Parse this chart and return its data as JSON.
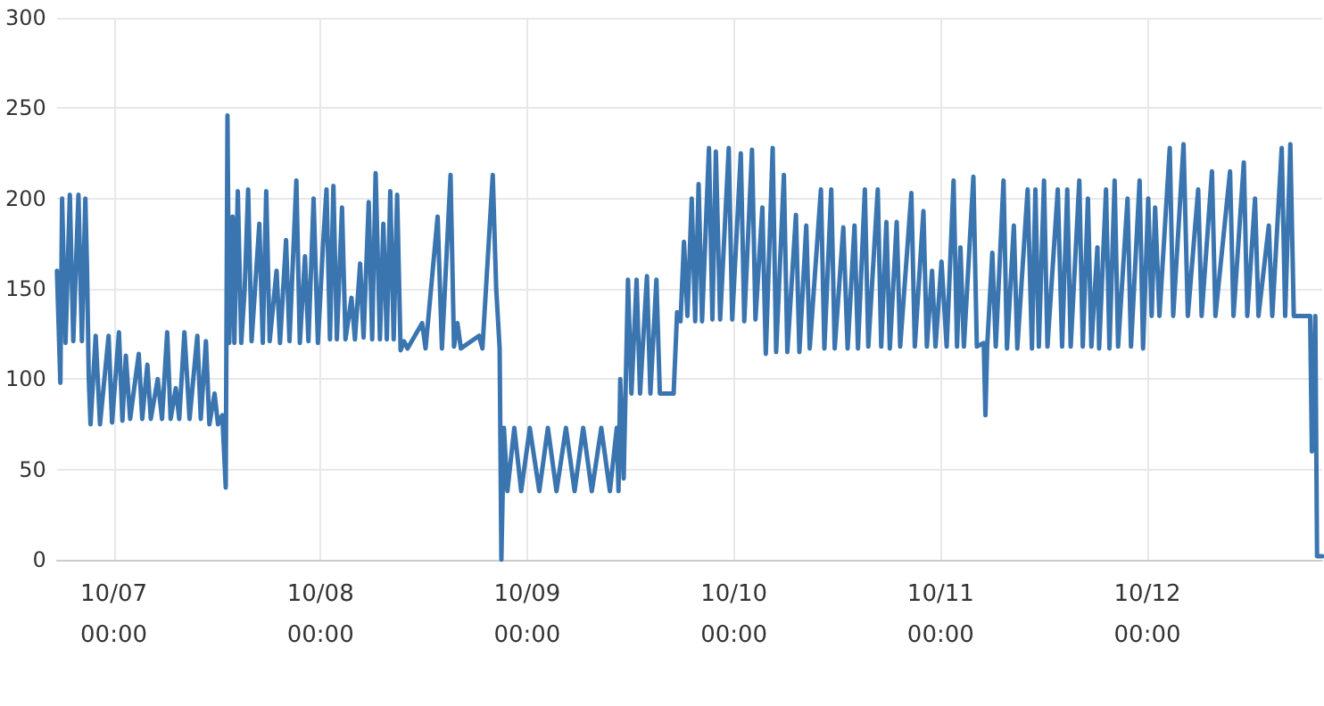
{
  "chart_data": {
    "type": "line",
    "xlim": [
      "--10-06T17:24",
      "--10-12T20:18"
    ],
    "ylim": [
      0,
      300
    ],
    "xticks": [
      {
        "value": "--10-07T00:00",
        "label": "10/07\n00:00"
      },
      {
        "value": "--10-08T00:00",
        "label": "10/08\n00:00"
      },
      {
        "value": "--10-09T00:00",
        "label": "10/09\n00:00"
      },
      {
        "value": "--10-10T00:00",
        "label": "10/10\n00:00"
      },
      {
        "value": "--10-11T00:00",
        "label": "10/11\n00:00"
      },
      {
        "value": "--10-12T00:00",
        "label": "10/12\n00:00"
      }
    ],
    "yticks": [
      0,
      50,
      100,
      150,
      200,
      250,
      300
    ],
    "grid": true,
    "marker": "none",
    "line_style": "solid",
    "series": [
      {
        "color": "#3a75b0",
        "x": [
          "--10-06T17:24",
          "--10-06T17:48",
          "--10-06T18:00",
          "--10-06T18:24",
          "--10-06T18:54",
          "--10-06T19:18",
          "--10-06T19:54",
          "--10-06T20:18",
          "--10-06T20:42",
          "--10-06T20:54",
          "--10-06T21:06",
          "--10-06T21:18",
          "--10-06T21:54",
          "--10-06T22:24",
          "--10-06T23:24",
          "--10-06T23:48",
          "--10-07T00:36",
          "--10-07T01:00",
          "--10-07T01:24",
          "--10-07T01:54",
          "--10-07T02:54",
          "--10-07T03:18",
          "--10-07T03:54",
          "--10-07T04:18",
          "--10-07T05:06",
          "--10-07T05:36",
          "--10-07T06:12",
          "--10-07T06:36",
          "--10-07T07:12",
          "--10-07T07:36",
          "--10-07T08:12",
          "--10-07T08:48",
          "--10-07T09:42",
          "--10-07T10:06",
          "--10-07T10:42",
          "--10-07T11:06",
          "--10-07T11:42",
          "--10-07T12:06",
          "--10-07T12:36",
          "--10-07T13:00",
          "--10-07T13:12",
          "--10-07T13:24",
          "--10-07T13:48",
          "--10-07T14:00",
          "--10-07T14:24",
          "--10-07T14:48",
          "--10-07T15:12",
          "--10-07T15:36",
          "--10-07T16:00",
          "--10-07T16:54",
          "--10-07T17:18",
          "--10-07T17:42",
          "--10-07T18:06",
          "--10-07T18:54",
          "--10-07T19:18",
          "--10-07T20:00",
          "--10-07T20:24",
          "--10-07T21:12",
          "--10-07T21:36",
          "--10-07T22:12",
          "--10-07T22:36",
          "--10-07T23:12",
          "--10-07T23:42",
          "--10-08T00:18",
          "--10-08T00:42",
          "--10-08T01:06",
          "--10-08T01:30",
          "--10-08T01:54",
          "--10-08T02:30",
          "--10-08T02:54",
          "--10-08T03:36",
          "--10-08T04:00",
          "--10-08T04:36",
          "--10-08T05:00",
          "--10-08T05:36",
          "--10-08T06:00",
          "--10-08T06:24",
          "--10-08T06:54",
          "--10-08T07:18",
          "--10-08T07:42",
          "--10-08T08:06",
          "--10-08T08:30",
          "--10-08T08:54",
          "--10-08T09:18",
          "--10-08T09:42",
          "--10-08T10:06",
          "--10-08T11:48",
          "--10-08T12:12",
          "--10-08T13:36",
          "--10-08T14:06",
          "--10-08T15:06",
          "--10-08T15:30",
          "--10-08T15:54",
          "--10-08T16:18",
          "--10-08T18:24",
          "--10-08T18:48",
          "--10-08T20:00",
          "--10-08T20:24",
          "--10-08T20:48",
          "--10-08T21:00",
          "--10-08T21:18",
          "--10-08T21:42",
          "--10-08T22:30",
          "--10-08T23:18",
          "--10-09T00:18",
          "--10-09T01:24",
          "--10-09T02:24",
          "--10-09T03:24",
          "--10-09T04:30",
          "--10-09T05:30",
          "--10-09T06:30",
          "--10-09T07:30",
          "--10-09T08:36",
          "--10-09T09:36",
          "--10-09T10:24",
          "--10-09T10:36",
          "--10-09T10:48",
          "--10-09T11:12",
          "--10-09T11:42",
          "--10-09T12:06",
          "--10-09T12:42",
          "--10-09T13:06",
          "--10-09T13:54",
          "--10-09T14:18",
          "--10-09T15:00",
          "--10-09T15:24",
          "--10-09T17:00",
          "--10-09T17:24",
          "--10-09T17:48",
          "--10-09T18:12",
          "--10-09T18:36",
          "--10-09T19:06",
          "--10-09T19:30",
          "--10-09T19:54",
          "--10-09T20:18",
          "--10-09T21:06",
          "--10-09T21:30",
          "--10-09T21:54",
          "--10-09T22:24",
          "--10-09T23:24",
          "--10-09T23:48",
          "--10-10T00:48",
          "--10-10T01:12",
          "--10-10T02:06",
          "--10-10T02:30",
          "--10-10T03:18",
          "--10-10T03:42",
          "--10-10T04:30",
          "--10-10T04:54",
          "--10-10T05:48",
          "--10-10T06:12",
          "--10-10T07:12",
          "--10-10T07:36",
          "--10-10T08:24",
          "--10-10T08:48",
          "--10-10T10:06",
          "--10-10T10:30",
          "--10-10T11:18",
          "--10-10T11:42",
          "--10-10T12:42",
          "--10-10T13:12",
          "--10-10T14:00",
          "--10-10T14:24",
          "--10-10T15:12",
          "--10-10T15:36",
          "--10-10T16:42",
          "--10-10T17:06",
          "--10-10T17:42",
          "--10-10T18:06",
          "--10-10T18:54",
          "--10-10T19:18",
          "--10-10T20:36",
          "--10-10T21:00",
          "--10-10T22:00",
          "--10-10T22:24",
          "--10-10T23:00",
          "--10-10T23:24",
          "--10-11T00:06",
          "--10-11T00:42",
          "--10-11T01:30",
          "--10-11T01:54",
          "--10-11T02:18",
          "--10-11T02:42",
          "--10-11T03:48",
          "--10-11T04:12",
          "--10-11T05:00",
          "--10-11T05:12",
          "--10-11T05:24",
          "--10-11T06:00",
          "--10-11T06:24",
          "--10-11T07:18",
          "--10-11T07:42",
          "--10-11T08:30",
          "--10-11T08:54",
          "--10-11T10:06",
          "--10-11T10:36",
          "--10-11T11:00",
          "--10-11T11:24",
          "--10-11T12:00",
          "--10-11T12:24",
          "--10-11T13:36",
          "--10-11T14:06",
          "--10-11T14:42",
          "--10-11T15:06",
          "--10-11T16:06",
          "--10-11T16:30",
          "--10-11T17:06",
          "--10-11T17:30",
          "--10-11T18:12",
          "--10-11T18:24",
          "--10-11T19:12",
          "--10-11T19:36",
          "--10-11T20:12",
          "--10-11T20:36",
          "--10-11T21:42",
          "--10-11T22:06",
          "--10-11T23:06",
          "--10-11T23:30",
          "--10-12T00:06",
          "--10-12T00:30",
          "--10-12T00:54",
          "--10-12T01:24",
          "--10-12T02:36",
          "--10-12T03:00",
          "--10-12T04:12",
          "--10-12T04:42",
          "--10-12T05:54",
          "--10-12T06:18",
          "--10-12T07:30",
          "--10-12T07:54",
          "--10-12T09:36",
          "--10-12T10:00",
          "--10-12T11:12",
          "--10-12T11:36",
          "--10-12T12:30",
          "--10-12T12:54",
          "--10-12T14:06",
          "--10-12T14:30",
          "--10-12T15:36",
          "--10-12T16:00",
          "--10-12T16:36",
          "--10-12T17:00",
          "--10-12T18:54",
          "--10-12T19:06",
          "--10-12T19:30",
          "--10-12T19:42",
          "--10-12T20:18"
        ],
        "values": [
          160,
          98,
          200,
          120,
          202,
          121,
          202,
          121,
          200,
          160,
          100,
          75,
          124,
          75,
          124,
          76,
          126,
          77,
          113,
          78,
          114,
          78,
          108,
          78,
          100,
          78,
          126,
          78,
          95,
          78,
          126,
          78,
          124,
          78,
          121,
          75,
          92,
          75,
          80,
          40,
          246,
          120,
          190,
          120,
          204,
          120,
          150,
          205,
          121,
          186,
          120,
          204,
          121,
          160,
          120,
          177,
          121,
          210,
          120,
          168,
          121,
          200,
          120,
          175,
          205,
          122,
          207,
          122,
          195,
          122,
          145,
          122,
          164,
          123,
          198,
          122,
          214,
          122,
          186,
          122,
          204,
          122,
          202,
          116,
          121,
          117,
          131,
          117,
          190,
          117,
          213,
          118,
          131,
          117,
          124,
          117,
          213,
          150,
          117,
          0,
          73,
          38,
          73,
          38,
          73,
          38,
          73,
          38,
          73,
          38,
          73,
          38,
          73,
          38,
          73,
          38,
          100,
          45,
          155,
          92,
          155,
          92,
          157,
          92,
          155,
          92,
          92,
          137,
          132,
          176,
          135,
          200,
          132,
          208,
          132,
          228,
          133,
          226,
          133,
          228,
          133,
          225,
          132,
          227,
          133,
          195,
          114,
          228,
          115,
          213,
          115,
          191,
          115,
          185,
          117,
          205,
          117,
          205,
          117,
          184,
          117,
          185,
          117,
          205,
          118,
          205,
          118,
          187,
          117,
          187,
          118,
          203,
          118,
          193,
          118,
          160,
          118,
          165,
          118,
          210,
          118,
          173,
          118,
          212,
          118,
          120,
          80,
          118,
          170,
          118,
          210,
          117,
          185,
          117,
          205,
          117,
          205,
          118,
          210,
          118,
          205,
          118,
          205,
          118,
          210,
          118,
          200,
          118,
          173,
          117,
          205,
          117,
          210,
          118,
          200,
          118,
          210,
          117,
          200,
          135,
          195,
          135,
          228,
          135,
          230,
          135,
          205,
          135,
          215,
          135,
          215,
          135,
          220,
          135,
          200,
          135,
          185,
          135,
          228,
          135,
          230,
          135,
          135,
          60,
          135,
          2,
          2
        ]
      }
    ]
  }
}
